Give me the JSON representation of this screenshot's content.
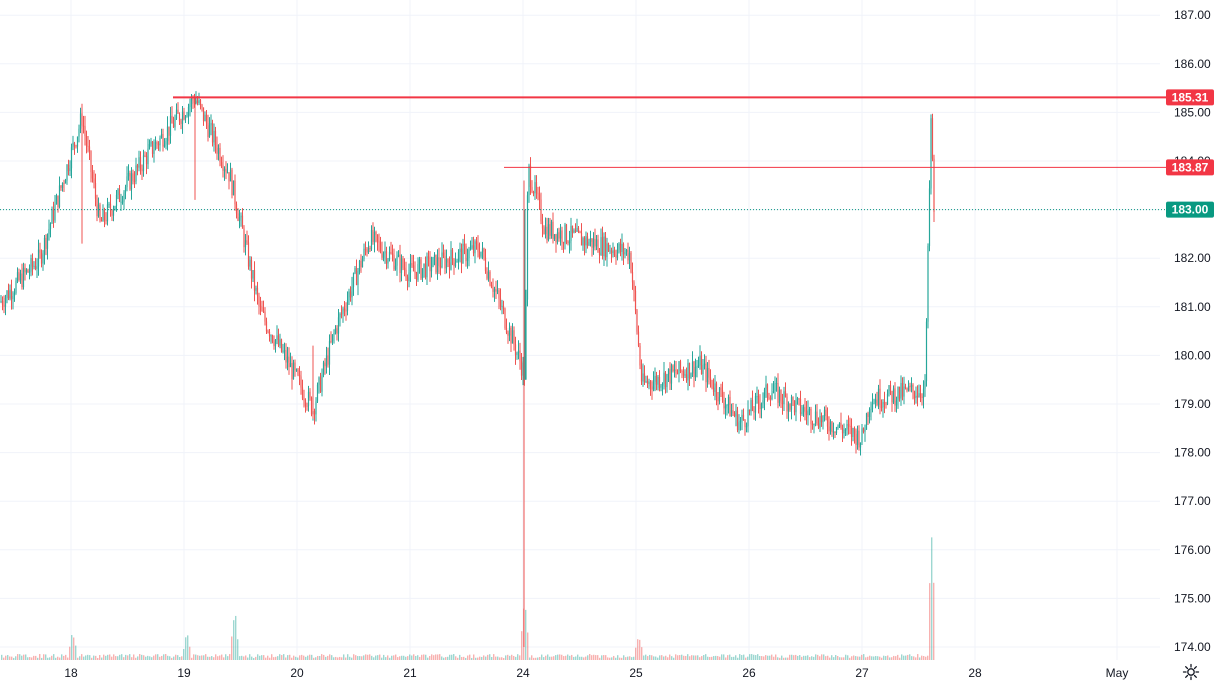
{
  "chart_data": {
    "type": "candlestick",
    "title": "",
    "xlabel": "",
    "ylabel": "",
    "ylim": [
      173.7,
      187.3
    ],
    "y_ticks": [
      174,
      175,
      176,
      177,
      178,
      179,
      180,
      181,
      182,
      183,
      184,
      185,
      186,
      187
    ],
    "y_tick_labels": [
      "174.00",
      "175.00",
      "176.00",
      "177.00",
      "178.00",
      "179.00",
      "180.00",
      "181.00",
      "182.00",
      "183.00",
      "184.00",
      "185.00",
      "186.00",
      "187.00"
    ],
    "x_tick_labels": [
      "18",
      "19",
      "20",
      "21",
      "24",
      "25",
      "26",
      "27",
      "28",
      "May"
    ],
    "grid": true,
    "colors": {
      "up": "#26a69a",
      "down": "#ef5350",
      "resistance": "#f23645",
      "current": "#089981",
      "axis_text": "#131722",
      "grid": "#f0f3fa"
    },
    "key_points": [
      {
        "label": "18",
        "price": 181.1
      },
      {
        "label": "18",
        "price": 182.0
      },
      {
        "label": "18",
        "price": 184.9
      },
      {
        "label": "18",
        "price": 182.7
      },
      {
        "label": "19",
        "price": 184.2
      },
      {
        "label": "19",
        "price": 185.31
      },
      {
        "label": "19",
        "price": 183.7
      },
      {
        "label": "20",
        "price": 180.9
      },
      {
        "label": "20",
        "price": 178.9
      },
      {
        "label": "20",
        "price": 180.5
      },
      {
        "label": "21",
        "price": 182.4
      },
      {
        "label": "21",
        "price": 181.7
      },
      {
        "label": "21",
        "price": 182.2
      },
      {
        "label": "24",
        "price": 179.6
      },
      {
        "label": "24",
        "price": 183.87
      },
      {
        "label": "24",
        "price": 182.6
      },
      {
        "label": "25",
        "price": 182.1
      },
      {
        "label": "25",
        "price": 179.4
      },
      {
        "label": "25",
        "price": 179.8
      },
      {
        "label": "26",
        "price": 178.6
      },
      {
        "label": "26",
        "price": 179.3
      },
      {
        "label": "26",
        "price": 178.9
      },
      {
        "label": "27",
        "price": 178.3
      },
      {
        "label": "27",
        "price": 179.1
      },
      {
        "label": "27",
        "price": 179.3
      },
      {
        "label": "27",
        "price": 184.8
      },
      {
        "label": "27",
        "price": 183.0
      }
    ],
    "levels": [
      {
        "name": "resistance-high",
        "price": 185.31,
        "label": "185.31",
        "color": "#f23645",
        "style": "solid"
      },
      {
        "name": "resistance-low",
        "price": 183.87,
        "label": "183.87",
        "color": "#f23645",
        "style": "solid"
      },
      {
        "name": "current-price",
        "price": 183.0,
        "label": "183.00",
        "color": "#089981",
        "style": "dotted"
      }
    ],
    "volume": {
      "description": "relative volume spikes",
      "spikes": [
        {
          "label": "18",
          "relative": 0.2
        },
        {
          "label": "19",
          "relative": 0.2
        },
        {
          "label": "19",
          "relative": 0.4
        },
        {
          "label": "24",
          "relative": 0.5
        },
        {
          "label": "25",
          "relative": 0.2
        },
        {
          "label": "27",
          "relative": 1.0
        }
      ]
    }
  },
  "icons": {
    "settings": "gear-icon"
  }
}
